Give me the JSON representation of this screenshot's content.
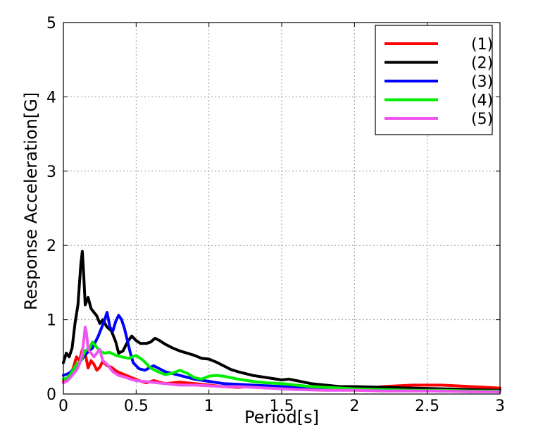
{
  "chart_data": {
    "type": "line",
    "xlabel": "Period[s]",
    "ylabel": "Response Acceleration[G]",
    "xlim": [
      0,
      3
    ],
    "ylim": [
      0,
      5
    ],
    "xticks": [
      "0",
      "0.5",
      "1",
      "1.5",
      "2",
      "2.5",
      "3"
    ],
    "yticks": [
      "0",
      "1",
      "2",
      "3",
      "4",
      "5"
    ],
    "grid": true,
    "legend_position": "top-right",
    "series": [
      {
        "name": "(1)",
        "color": "#ff0000",
        "x": [
          0.0,
          0.03,
          0.06,
          0.09,
          0.11,
          0.13,
          0.15,
          0.17,
          0.19,
          0.21,
          0.23,
          0.25,
          0.27,
          0.3,
          0.33,
          0.37,
          0.42,
          0.47,
          0.52,
          0.57,
          0.62,
          0.7,
          0.8,
          0.9,
          1.0,
          1.1,
          1.2,
          1.3,
          1.4,
          1.5,
          1.6,
          1.7,
          1.8,
          1.9,
          2.0,
          2.1,
          2.2,
          2.3,
          2.4,
          2.5,
          2.6,
          2.7,
          2.8,
          2.9,
          3.0
        ],
        "y": [
          0.17,
          0.19,
          0.3,
          0.5,
          0.45,
          0.6,
          0.55,
          0.35,
          0.45,
          0.4,
          0.32,
          0.36,
          0.44,
          0.38,
          0.36,
          0.3,
          0.26,
          0.22,
          0.18,
          0.15,
          0.18,
          0.14,
          0.16,
          0.14,
          0.12,
          0.1,
          0.09,
          0.1,
          0.11,
          0.09,
          0.08,
          0.07,
          0.07,
          0.06,
          0.07,
          0.08,
          0.1,
          0.11,
          0.12,
          0.12,
          0.12,
          0.11,
          0.1,
          0.09,
          0.08
        ]
      },
      {
        "name": "(2)",
        "color": "#000000",
        "x": [
          0.0,
          0.02,
          0.04,
          0.06,
          0.08,
          0.1,
          0.12,
          0.13,
          0.14,
          0.15,
          0.17,
          0.19,
          0.21,
          0.23,
          0.25,
          0.27,
          0.3,
          0.33,
          0.36,
          0.38,
          0.41,
          0.44,
          0.47,
          0.5,
          0.53,
          0.57,
          0.6,
          0.63,
          0.66,
          0.7,
          0.75,
          0.8,
          0.85,
          0.9,
          0.95,
          1.0,
          1.05,
          1.1,
          1.15,
          1.2,
          1.3,
          1.4,
          1.5,
          1.55,
          1.6,
          1.65,
          1.7,
          1.8,
          1.9,
          2.0,
          2.2,
          2.4,
          2.6,
          2.8,
          3.0
        ],
        "y": [
          0.42,
          0.55,
          0.5,
          0.62,
          0.95,
          1.2,
          1.75,
          1.92,
          1.6,
          1.2,
          1.3,
          1.15,
          1.1,
          1.05,
          0.95,
          1.0,
          0.9,
          0.85,
          0.7,
          0.55,
          0.58,
          0.7,
          0.78,
          0.72,
          0.68,
          0.68,
          0.7,
          0.75,
          0.72,
          0.67,
          0.62,
          0.58,
          0.55,
          0.52,
          0.48,
          0.47,
          0.43,
          0.38,
          0.33,
          0.3,
          0.25,
          0.22,
          0.19,
          0.2,
          0.18,
          0.16,
          0.14,
          0.12,
          0.1,
          0.1,
          0.09,
          0.08,
          0.07,
          0.06,
          0.05
        ]
      },
      {
        "name": "(3)",
        "color": "#0000ff",
        "x": [
          0.0,
          0.04,
          0.08,
          0.12,
          0.16,
          0.2,
          0.24,
          0.28,
          0.3,
          0.32,
          0.34,
          0.36,
          0.38,
          0.4,
          0.42,
          0.44,
          0.46,
          0.48,
          0.52,
          0.56,
          0.62,
          0.7,
          0.8,
          0.9,
          1.0,
          1.1,
          1.2,
          1.3,
          1.4,
          1.5,
          1.6,
          1.7,
          1.8,
          2.0,
          2.2,
          2.4,
          2.6,
          2.8,
          3.0
        ],
        "y": [
          0.25,
          0.28,
          0.35,
          0.45,
          0.55,
          0.62,
          0.78,
          0.98,
          1.1,
          0.9,
          0.85,
          0.98,
          1.06,
          1.0,
          0.88,
          0.72,
          0.55,
          0.42,
          0.34,
          0.32,
          0.38,
          0.3,
          0.25,
          0.2,
          0.17,
          0.14,
          0.13,
          0.12,
          0.11,
          0.1,
          0.09,
          0.08,
          0.07,
          0.06,
          0.05,
          0.05,
          0.04,
          0.04,
          0.03
        ]
      },
      {
        "name": "(4)",
        "color": "#00ee00",
        "x": [
          0.0,
          0.03,
          0.06,
          0.09,
          0.12,
          0.15,
          0.18,
          0.2,
          0.22,
          0.25,
          0.28,
          0.32,
          0.36,
          0.4,
          0.45,
          0.5,
          0.55,
          0.6,
          0.65,
          0.7,
          0.75,
          0.8,
          0.85,
          0.9,
          0.95,
          1.0,
          1.05,
          1.1,
          1.15,
          1.2,
          1.3,
          1.4,
          1.5,
          1.6,
          1.7,
          1.8,
          2.0,
          2.2,
          2.4,
          2.6,
          2.8,
          3.0
        ],
        "y": [
          0.2,
          0.22,
          0.3,
          0.4,
          0.45,
          0.58,
          0.62,
          0.7,
          0.65,
          0.58,
          0.55,
          0.56,
          0.52,
          0.5,
          0.48,
          0.52,
          0.45,
          0.35,
          0.3,
          0.26,
          0.28,
          0.32,
          0.28,
          0.22,
          0.2,
          0.24,
          0.25,
          0.24,
          0.22,
          0.2,
          0.17,
          0.15,
          0.14,
          0.12,
          0.1,
          0.09,
          0.07,
          0.06,
          0.05,
          0.05,
          0.04,
          0.04
        ]
      },
      {
        "name": "(5)",
        "color": "#ee55ee",
        "x": [
          0.0,
          0.03,
          0.06,
          0.09,
          0.11,
          0.13,
          0.15,
          0.16,
          0.17,
          0.19,
          0.21,
          0.23,
          0.25,
          0.27,
          0.3,
          0.34,
          0.38,
          0.42,
          0.46,
          0.5,
          0.55,
          0.6,
          0.65,
          0.7,
          0.8,
          0.9,
          1.0,
          1.1,
          1.2,
          1.3,
          1.4,
          1.5,
          1.6,
          1.8,
          2.0,
          2.2,
          2.4,
          2.6,
          2.8,
          3.0
        ],
        "y": [
          0.15,
          0.18,
          0.25,
          0.32,
          0.4,
          0.55,
          0.9,
          0.8,
          0.6,
          0.55,
          0.5,
          0.55,
          0.6,
          0.45,
          0.4,
          0.3,
          0.25,
          0.23,
          0.2,
          0.18,
          0.17,
          0.16,
          0.15,
          0.14,
          0.12,
          0.12,
          0.11,
          0.1,
          0.1,
          0.09,
          0.08,
          0.07,
          0.06,
          0.05,
          0.05,
          0.04,
          0.04,
          0.04,
          0.03,
          0.03
        ]
      }
    ]
  }
}
